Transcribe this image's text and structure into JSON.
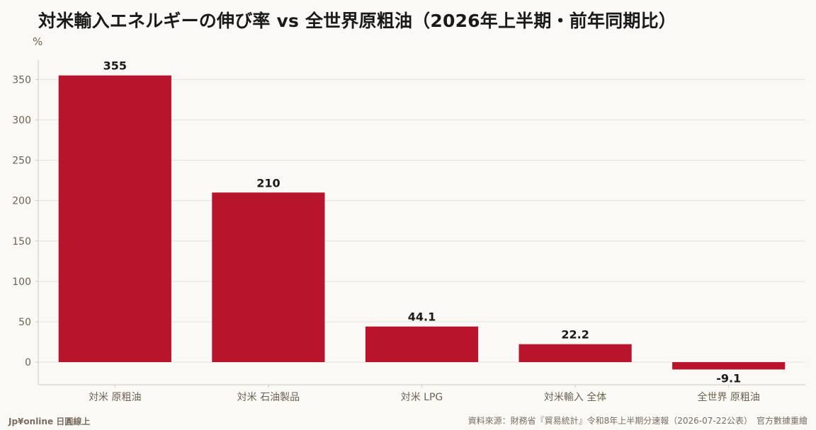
{
  "header": {
    "title": "対米輸入エネルギーの伸び率 vs 全世界原粗油（2026年上半期・前年同期比）"
  },
  "footer": {
    "brand": "Jp¥online 日圓線上",
    "source": "資料來源：財務省『貿易統計』令和8年上半期分速報（2026-07-22公表）　官方數據重繪"
  },
  "colors": {
    "bar": "#b8142b",
    "background": "#faf9f5",
    "grid": "#e6e2da",
    "axis": "#cfcac0",
    "tick_text": "#6e6350",
    "value_text": "#1a1a1a"
  },
  "chart_data": {
    "type": "bar",
    "title": "対米輸入エネルギーの伸び率 vs 全世界原粗油（2026年上半期・前年同期比）",
    "ylabel": "%",
    "xlabel": "",
    "categories": [
      "対米 原粗油",
      "対米 石油製品",
      "対米 LPG",
      "対米輸入 全体",
      "全世界 原粗油"
    ],
    "values": [
      355,
      210,
      44.1,
      22.2,
      -9.1
    ],
    "value_labels": [
      "355",
      "210",
      "44.1",
      "22.2",
      "-9.1"
    ],
    "yticks": [
      0,
      50,
      100,
      150,
      200,
      250,
      300,
      350
    ],
    "ylim": [
      -28,
      374
    ],
    "grid": true,
    "legend": "none"
  }
}
